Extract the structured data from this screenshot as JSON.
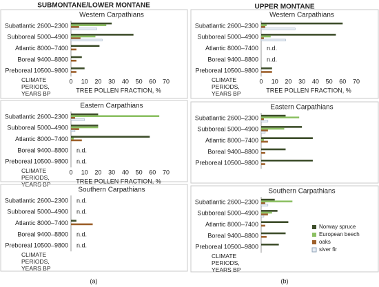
{
  "headings": [
    "SUBMONTANE/LOWER MONTANE",
    "UPPER MONTANE"
  ],
  "panel_labels": [
    "(a)",
    "(b)"
  ],
  "chart_data": [
    {
      "type": "bar",
      "orientation": "horizontal",
      "title": "Western Carpathians",
      "categories": [
        "Subatlantic 2600–2300",
        "Subboreal 5000–4900",
        "Atlantic 8000–7400",
        "Boreal 9400–8800",
        "Preboreal 10500–9800"
      ],
      "series": [
        {
          "name": "Norway spruce",
          "color": "#3d4d2a",
          "values": [
            30,
            46,
            21,
            8,
            10
          ]
        },
        {
          "name": "European beech",
          "color": "#8cc063",
          "values": [
            26,
            18,
            null,
            null,
            null
          ]
        },
        {
          "name": "oaks",
          "color": "#9c5f2a",
          "values": [
            6,
            7,
            4,
            4,
            4
          ]
        },
        {
          "name": "siver fir",
          "color": "#e8eef5",
          "values": [
            19,
            23,
            null,
            null,
            null
          ]
        }
      ],
      "xlim": [
        0,
        70
      ],
      "xticks": [
        0,
        10,
        20,
        30,
        40,
        50,
        60,
        70
      ],
      "x_label": "TREE POLLEN FRACTION, %",
      "y_label": "CLIMATE PERIODS, YEARS BP"
    },
    {
      "type": "bar",
      "orientation": "horizontal",
      "title": "Western Carpathians",
      "categories": [
        "Subatlantic 2600–2300",
        "Subboreal 5000–4900",
        "Atlantic 8000–7400",
        "Boreal 9400–8800",
        "Preboreal 10500–9800"
      ],
      "series": [
        {
          "name": "Norway spruce",
          "color": "#3d4d2a",
          "values": [
            60,
            55,
            null,
            null,
            8
          ]
        },
        {
          "name": "European beech",
          "color": "#8cc063",
          "values": [
            4,
            7,
            null,
            null,
            null
          ]
        },
        {
          "name": "oaks",
          "color": "#9c5f2a",
          "values": [
            3,
            2,
            null,
            null,
            8
          ]
        },
        {
          "name": "siver fir",
          "color": "#e8eef5",
          "values": [
            25,
            18,
            null,
            null,
            null
          ]
        }
      ],
      "annotations": [
        {
          "text": "n.d.",
          "category": "Atlantic 8000–7400"
        },
        {
          "text": "n.d.",
          "category": "Boreal 9400–8800"
        }
      ],
      "xlim": [
        0,
        70
      ],
      "xticks": [
        0,
        10,
        20,
        30,
        40,
        50,
        60,
        70
      ],
      "x_label": "TREE POLLEN FRACTION, %",
      "y_label": "CLIMATE PERIODS, YEARS BP"
    },
    {
      "type": "bar",
      "orientation": "horizontal",
      "title": "Eastern Carpathians",
      "categories": [
        "Subatlantic 2600–2300",
        "Subboreal 5000–4900",
        "Atlantic 8000–7400",
        "Boreal 9400–8800",
        "Preboreal 10500–9800"
      ],
      "series": [
        {
          "name": "Norway spruce",
          "color": "#3d4d2a",
          "values": [
            20,
            20,
            58,
            null,
            null
          ]
        },
        {
          "name": "European beech",
          "color": "#8cc063",
          "values": [
            65,
            20,
            2,
            null,
            null
          ]
        },
        {
          "name": "oaks",
          "color": "#9c5f2a",
          "values": [
            3,
            6,
            8,
            null,
            null
          ]
        },
        {
          "name": "siver fir",
          "color": "#e8eef5",
          "values": [
            10,
            3,
            null,
            null,
            null
          ]
        }
      ],
      "annotations": [
        {
          "text": "n.d.",
          "category": "Boreal 9400–8800"
        },
        {
          "text": "n.d.",
          "category": "Preboreal 10500–9800"
        }
      ],
      "xlim": [
        0,
        70
      ],
      "xticks": [
        0,
        10,
        20,
        30,
        40,
        50,
        60,
        70
      ],
      "x_label": "TREE POLLEN FRACTION, %",
      "y_label": "CLIMATE PERIODS, YEARS BP"
    },
    {
      "type": "bar",
      "orientation": "horizontal",
      "title": "Eastern Carpathians",
      "categories": [
        "Subatlantic 2600–2300",
        "Subboreal 5000–4900",
        "Atlantic 8000–7400",
        "Boreal 9400–8800",
        "Preboreal 10500–9800"
      ],
      "series": [
        {
          "name": "Norway spruce",
          "color": "#3d4d2a",
          "values": [
            18,
            30,
            38,
            18,
            38
          ]
        },
        {
          "name": "European beech",
          "color": "#8cc063",
          "values": [
            28,
            17,
            2,
            null,
            null
          ]
        },
        {
          "name": "oaks",
          "color": "#9c5f2a",
          "values": [
            2,
            5,
            5,
            3,
            3
          ]
        },
        {
          "name": "siver fir",
          "color": "#e8eef5",
          "values": [
            5,
            3,
            null,
            null,
            null
          ]
        }
      ],
      "xlim": [
        0,
        70
      ]
    },
    {
      "type": "bar",
      "orientation": "horizontal",
      "title": "Southern Carpathians",
      "categories": [
        "Subatlantic 2600–2300",
        "Subboreal 5000–4900",
        "Atlantic 8000–7400",
        "Boreal 9400–8800",
        "Preboreal 10500–9800"
      ],
      "series": [
        {
          "name": "Norway spruce",
          "color": "#3d4d2a",
          "values": [
            null,
            null,
            4,
            null,
            null
          ]
        },
        {
          "name": "European beech",
          "color": "#8cc063",
          "values": [
            null,
            null,
            null,
            null,
            null
          ]
        },
        {
          "name": "oaks",
          "color": "#9c5f2a",
          "values": [
            null,
            null,
            16,
            null,
            null
          ]
        },
        {
          "name": "siver fir",
          "color": "#e8eef5",
          "values": [
            null,
            null,
            null,
            null,
            null
          ]
        }
      ],
      "annotations": [
        {
          "text": "n.d.",
          "category": "Subatlantic 2600–2300"
        },
        {
          "text": "n.d.",
          "category": "Subboreal 5000–4900"
        },
        {
          "text": "n.d.",
          "category": "Boreal 9400–8800"
        },
        {
          "text": "n.d.",
          "category": "Preboreal 10500–9800"
        }
      ],
      "xlim": [
        0,
        70
      ],
      "y_label": "CLIMATE PERIODS, YEARS BP"
    },
    {
      "type": "bar",
      "orientation": "horizontal",
      "title": "Southern Carpathians",
      "categories": [
        "Subatlantic 2600–2300",
        "Subboreal 5000–4900",
        "Atlantic 8000–7400",
        "Boreal 9400–8800",
        "Preboreal 10500–9800"
      ],
      "series": [
        {
          "name": "Norway spruce",
          "color": "#3d4d2a",
          "values": [
            10,
            12,
            20,
            18,
            13
          ]
        },
        {
          "name": "European beech",
          "color": "#8cc063",
          "values": [
            23,
            8,
            null,
            null,
            null
          ]
        },
        {
          "name": "oaks",
          "color": "#9c5f2a",
          "values": [
            3,
            5,
            3,
            4,
            null
          ]
        },
        {
          "name": "siver fir",
          "color": "#e8eef5",
          "values": [
            5,
            2,
            null,
            null,
            null
          ]
        }
      ],
      "xlim": [
        0,
        70
      ],
      "y_label": "CLIMATE PERIODS, YEARS BP",
      "legend": "right"
    }
  ]
}
